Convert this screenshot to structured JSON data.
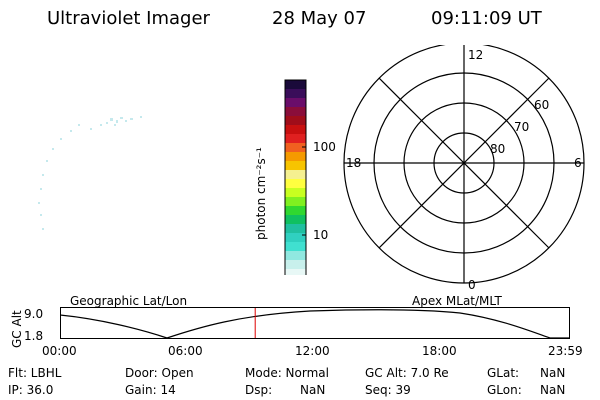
{
  "header": {
    "title": "Ultraviolet Imager",
    "date": "28 May 07",
    "time": "09:11:09 UT"
  },
  "colorbar": {
    "label": "photon cm⁻²s⁻¹",
    "ticks": [
      "100",
      "10"
    ],
    "colors": [
      "#1a0a3a",
      "#3a0d5a",
      "#6a0d6a",
      "#8a0d3a",
      "#a00d1a",
      "#c81010",
      "#e02020",
      "#f06020",
      "#f59a00",
      "#f7c400",
      "#f5f090",
      "#ffff40",
      "#c8ff20",
      "#80f020",
      "#30d830",
      "#10c060",
      "#20c0a0",
      "#30d0c0",
      "#40e0d0",
      "#90e8e0",
      "#c8f0ec",
      "#e8f8f6"
    ]
  },
  "polar": {
    "mlt_labels": [
      "12",
      "18",
      "6",
      "0"
    ],
    "lat_labels": [
      "60",
      "70",
      "80"
    ]
  },
  "timeline": {
    "left_label": "Geographic Lat/Lon",
    "right_label": "Apex MLat/MLT",
    "y_label": "GC Alt",
    "y_ticks": [
      "9.0",
      "1.8"
    ],
    "x_ticks": [
      "00:00",
      "06:00",
      "12:00",
      "18:00",
      "23:59"
    ],
    "current_time_hours": 9.186
  },
  "info": {
    "flt": "Flt: LBHL",
    "door": "Door: Open",
    "mode": "Mode: Normal",
    "gcalt": "GC Alt: 7.0 Re",
    "glat_label": "GLat:",
    "glat_val": "NaN",
    "ip": "IP: 36.0",
    "gain": "Gain: 14",
    "dsp_label": "Dsp:",
    "dsp_val": "NaN",
    "seq": "Seq: 39",
    "glon_label": "GLon:",
    "glon_val": "NaN"
  }
}
